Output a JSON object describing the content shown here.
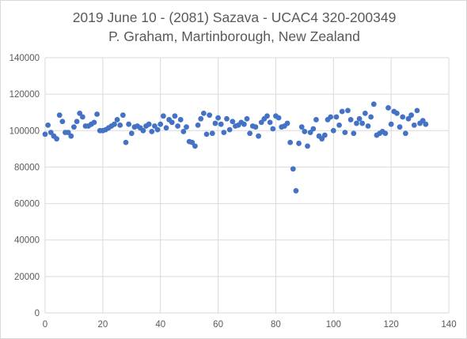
{
  "chart_data": {
    "type": "scatter",
    "title": "2019 June 10 - (2081) Sazava - UCAC4 320-200349",
    "subtitle": "P. Graham, Martinborough, New Zealand",
    "xlabel": "",
    "ylabel": "",
    "xlim": [
      0,
      140
    ],
    "ylim": [
      0,
      140000
    ],
    "x_ticks": [
      0,
      20,
      40,
      60,
      80,
      100,
      120,
      140
    ],
    "y_ticks": [
      0,
      20000,
      40000,
      60000,
      80000,
      100000,
      120000,
      140000
    ],
    "x_tick_labels": [
      "0",
      "20",
      "40",
      "60",
      "80",
      "100",
      "120",
      "140"
    ],
    "y_tick_labels": [
      "0",
      "20000",
      "40000",
      "60000",
      "80000",
      "100000",
      "120000",
      "140000"
    ],
    "grid": true,
    "legend": "none",
    "marker_color": "#4472c4",
    "gridline_color": "#d9d9d9",
    "series": [
      {
        "x": [
          0,
          1,
          2,
          3,
          4,
          5,
          6,
          7,
          8,
          9,
          10,
          11,
          12,
          13,
          14,
          15,
          16,
          17,
          18,
          19,
          20,
          21,
          22,
          23,
          24,
          25,
          26,
          27,
          28,
          29,
          30,
          31,
          32,
          33,
          34,
          35,
          36,
          37,
          38,
          39,
          40,
          41,
          42,
          43,
          44,
          45,
          46,
          47,
          48,
          49,
          50,
          51,
          52,
          53,
          54,
          55,
          56,
          57,
          58,
          59,
          60,
          61,
          62,
          63,
          64,
          65,
          66,
          67,
          68,
          69,
          70,
          71,
          72,
          73,
          74,
          75,
          76,
          77,
          78,
          79,
          80,
          81,
          82,
          83,
          84,
          85,
          86,
          87,
          88,
          89,
          90,
          91,
          92,
          93,
          94,
          95,
          96,
          97,
          98,
          99,
          100,
          101,
          102,
          103,
          104,
          105,
          106,
          107,
          108,
          109,
          110,
          111,
          112,
          113,
          114,
          115,
          116,
          117,
          118,
          119,
          120,
          121,
          122,
          123,
          124,
          125,
          126,
          127,
          128,
          129,
          130,
          131,
          132
        ],
        "y": [
          98000,
          103000,
          99000,
          97000,
          95500,
          108500,
          105000,
          99000,
          99000,
          97000,
          102000,
          105000,
          109500,
          107500,
          102500,
          102500,
          103500,
          104500,
          109000,
          100000,
          100000,
          100500,
          101500,
          102500,
          103500,
          106000,
          103000,
          108500,
          93500,
          103500,
          98500,
          102000,
          102500,
          101500,
          100000,
          102500,
          103500,
          99500,
          102500,
          100500,
          103500,
          108000,
          101500,
          106000,
          104500,
          108000,
          102500,
          106000,
          99500,
          102000,
          94000,
          93500,
          91500,
          103000,
          106500,
          109500,
          98000,
          108500,
          98500,
          104000,
          107000,
          103500,
          99000,
          106500,
          100500,
          105000,
          102500,
          103000,
          104500,
          103500,
          106500,
          98500,
          102500,
          102000,
          97000,
          104500,
          106500,
          108000,
          104500,
          101000,
          108000,
          107000,
          102000,
          102500,
          104000,
          93500,
          79000,
          67000,
          93000,
          102000,
          99500,
          91500,
          99000,
          101000,
          106000,
          97000,
          95500,
          97500,
          106000,
          107500,
          100000,
          107500,
          103000,
          110500,
          99000,
          111000,
          106000,
          98500,
          104000,
          106500,
          104000,
          109500,
          102500,
          107500,
          114500,
          97500,
          98500,
          99500,
          98500,
          112500,
          103500,
          110500,
          109500,
          102000,
          107500,
          98500,
          106500,
          108500,
          103000,
          111000,
          104000,
          105500,
          103500
        ]
      }
    ]
  }
}
